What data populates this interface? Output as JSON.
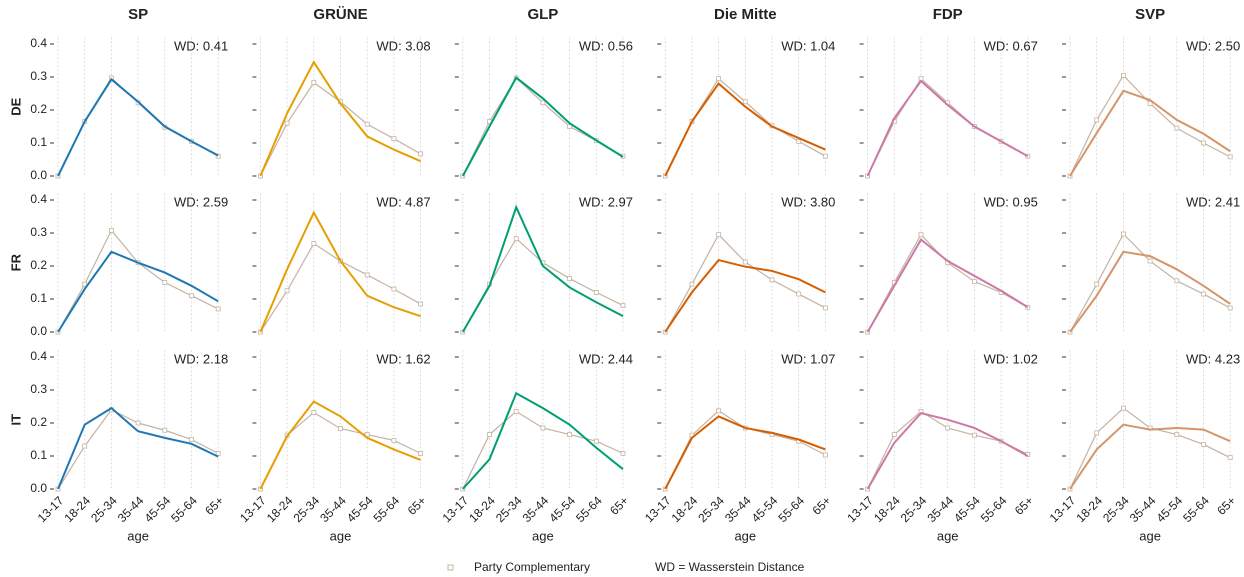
{
  "chart_data": {
    "type": "line",
    "xlabel": "age",
    "categories": [
      "13-17",
      "18-24",
      "25-34",
      "35-44",
      "45-54",
      "55-64",
      "65+"
    ],
    "ylim": [
      0,
      0.42
    ],
    "yticks": [
      {
        "value": 0,
        "label": "0.0"
      },
      0.1,
      0.2,
      0.3,
      0.4
    ],
    "grid": true,
    "columns": [
      {
        "title": "SP",
        "color": "#1f78b4"
      },
      {
        "title": "GRÜNE",
        "color": "#e69f00"
      },
      {
        "title": "GLP",
        "color": "#009e73"
      },
      {
        "title": "Die Mitte",
        "color": "#d55e00"
      },
      {
        "title": "FDP",
        "color": "#cc79a7"
      },
      {
        "title": "SVP",
        "color": "#d4956a"
      }
    ],
    "complement": {
      "name": "Party Complementary",
      "color": "#c4b3a2"
    },
    "note": "WD = Wasserstein Distance",
    "rows": [
      {
        "label": "DE",
        "panels": [
          {
            "annotation": "WD: 0.41",
            "party": [
              0,
              0.165,
              0.293,
              0.225,
              0.15,
              0.105,
              0.062
            ],
            "complement": [
              0,
              0.165,
              0.297,
              0.222,
              0.148,
              0.105,
              0.06
            ]
          },
          {
            "annotation": "WD: 3.08",
            "party": [
              0,
              0.19,
              0.345,
              0.22,
              0.12,
              0.08,
              0.045
            ],
            "complement": [
              0,
              0.16,
              0.283,
              0.225,
              0.157,
              0.113,
              0.067
            ]
          },
          {
            "annotation": "WD: 0.56",
            "party": [
              0,
              0.15,
              0.298,
              0.235,
              0.16,
              0.108,
              0.058
            ],
            "complement": [
              0,
              0.165,
              0.297,
              0.222,
              0.15,
              0.107,
              0.06
            ]
          },
          {
            "annotation": "WD: 1.04",
            "party": [
              0,
              0.165,
              0.28,
              0.21,
              0.15,
              0.115,
              0.08
            ],
            "complement": [
              0,
              0.165,
              0.295,
              0.225,
              0.152,
              0.105,
              0.06
            ]
          },
          {
            "annotation": "WD: 0.67",
            "party": [
              0,
              0.175,
              0.288,
              0.215,
              0.15,
              0.105,
              0.06
            ],
            "complement": [
              0,
              0.165,
              0.295,
              0.222,
              0.15,
              0.105,
              0.06
            ]
          },
          {
            "annotation": "WD: 2.50",
            "party": [
              0,
              0.13,
              0.258,
              0.23,
              0.17,
              0.128,
              0.075
            ],
            "complement": [
              0,
              0.17,
              0.305,
              0.22,
              0.145,
              0.1,
              0.058
            ]
          }
        ]
      },
      {
        "label": "FR",
        "panels": [
          {
            "annotation": "WD: 2.59",
            "party": [
              0,
              0.13,
              0.243,
              0.21,
              0.18,
              0.14,
              0.093
            ],
            "complement": [
              0,
              0.145,
              0.308,
              0.21,
              0.15,
              0.11,
              0.07
            ]
          },
          {
            "annotation": "WD: 4.87",
            "party": [
              0,
              0.19,
              0.362,
              0.215,
              0.11,
              0.075,
              0.048
            ],
            "complement": [
              0,
              0.125,
              0.268,
              0.215,
              0.173,
              0.13,
              0.085
            ]
          },
          {
            "annotation": "WD: 2.97",
            "party": [
              0,
              0.14,
              0.378,
              0.2,
              0.135,
              0.09,
              0.048
            ],
            "complement": [
              0,
              0.145,
              0.283,
              0.21,
              0.162,
              0.12,
              0.08
            ]
          },
          {
            "annotation": "WD: 3.80",
            "party": [
              0,
              0.12,
              0.218,
              0.198,
              0.185,
              0.16,
              0.12
            ],
            "complement": [
              0,
              0.145,
              0.295,
              0.212,
              0.158,
              0.115,
              0.073
            ]
          },
          {
            "annotation": "WD: 0.95",
            "party": [
              0,
              0.14,
              0.28,
              0.215,
              0.17,
              0.125,
              0.075
            ],
            "complement": [
              0,
              0.15,
              0.295,
              0.21,
              0.153,
              0.12,
              0.075
            ]
          },
          {
            "annotation": "WD: 2.41",
            "party": [
              0,
              0.11,
              0.243,
              0.23,
              0.19,
              0.14,
              0.085
            ],
            "complement": [
              0,
              0.145,
              0.297,
              0.215,
              0.155,
              0.115,
              0.073
            ]
          }
        ]
      },
      {
        "label": "IT",
        "panels": [
          {
            "annotation": "WD: 2.18",
            "party": [
              0,
              0.195,
              0.245,
              0.175,
              0.155,
              0.137,
              0.098
            ],
            "complement": [
              0,
              0.13,
              0.24,
              0.2,
              0.178,
              0.15,
              0.108
            ]
          },
          {
            "annotation": "WD: 1.62",
            "party": [
              0,
              0.16,
              0.265,
              0.22,
              0.155,
              0.12,
              0.088
            ],
            "complement": [
              0,
              0.163,
              0.232,
              0.183,
              0.165,
              0.147,
              0.108
            ]
          },
          {
            "annotation": "WD: 2.44",
            "party": [
              0,
              0.09,
              0.29,
              0.245,
              0.195,
              0.125,
              0.06
            ],
            "complement": [
              0,
              0.165,
              0.235,
              0.185,
              0.165,
              0.145,
              0.108
            ]
          },
          {
            "annotation": "WD: 1.07",
            "party": [
              0,
              0.155,
              0.22,
              0.185,
              0.17,
              0.15,
              0.12
            ],
            "complement": [
              0,
              0.163,
              0.237,
              0.185,
              0.165,
              0.145,
              0.103
            ]
          },
          {
            "annotation": "WD: 1.02",
            "party": [
              0,
              0.14,
              0.23,
              0.21,
              0.185,
              0.145,
              0.1
            ],
            "complement": [
              0,
              0.165,
              0.235,
              0.185,
              0.163,
              0.145,
              0.105
            ]
          },
          {
            "annotation": "WD: 4.23",
            "party": [
              0,
              0.12,
              0.195,
              0.18,
              0.185,
              0.18,
              0.145
            ],
            "complement": [
              0,
              0.17,
              0.245,
              0.185,
              0.165,
              0.135,
              0.095
            ]
          }
        ]
      }
    ]
  }
}
